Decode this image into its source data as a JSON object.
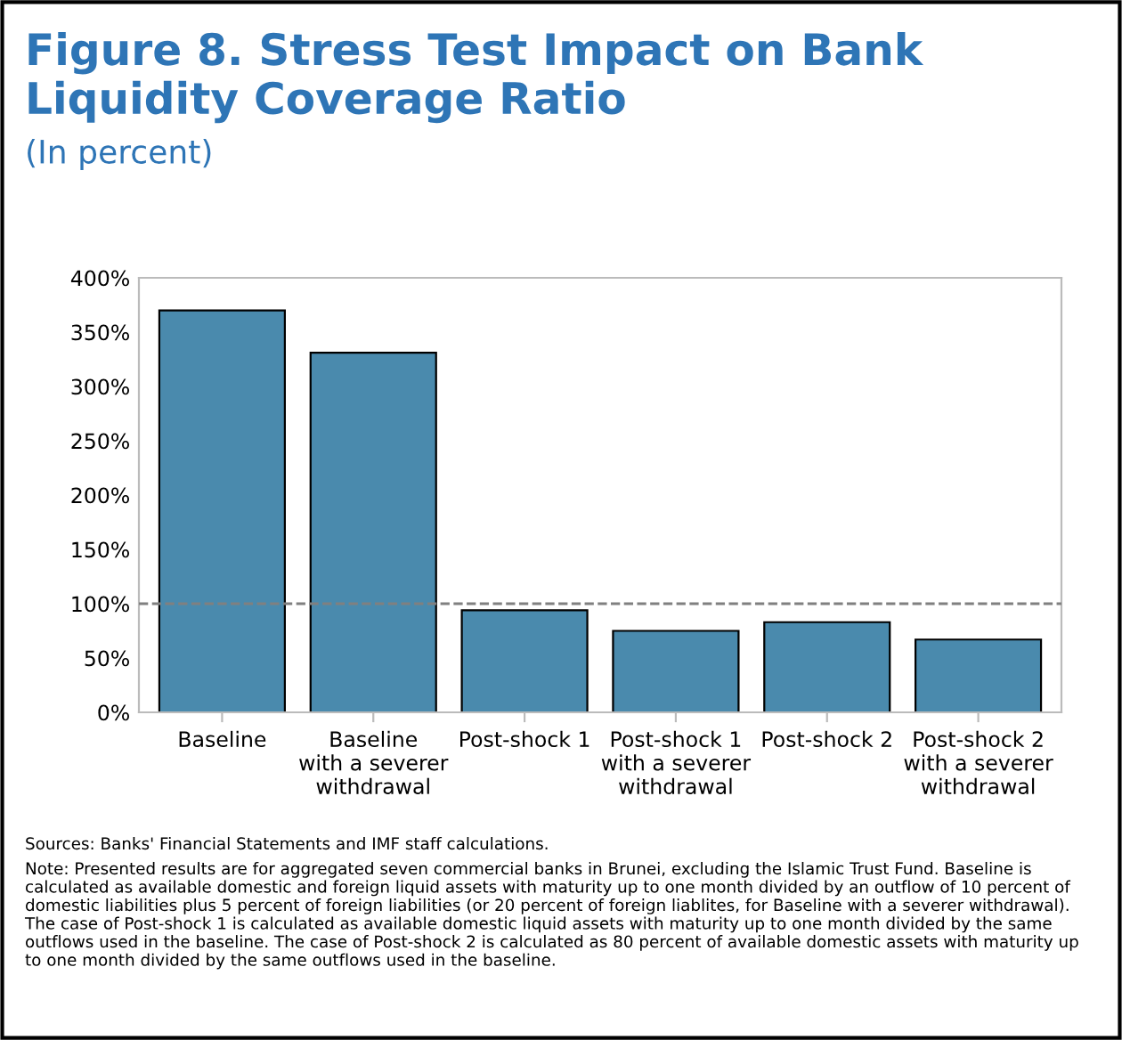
{
  "chart_data": {
    "type": "bar",
    "title": "Figure 8. Stress Test Impact on Bank Liquidity Coverage Ratio",
    "subtitle": "(In percent)",
    "categories": [
      "Baseline",
      "Baseline\nwith a severer\nwithdrawal",
      "Post-shock 1",
      "Post-shock 1\nwith a severer\nwithdrawal",
      "Post-shock 2",
      "Post-shock 2\nwith a severer\nwithdrawal"
    ],
    "values": [
      370,
      331,
      94,
      75,
      83,
      67
    ],
    "color": "#4a8aad",
    "ylim": [
      0,
      400
    ],
    "yticks": [
      {
        "value": 0,
        "label": "0%"
      },
      {
        "value": 50,
        "label": "50%"
      },
      {
        "value": 100,
        "label": "100%"
      },
      {
        "value": 150,
        "label": "150%"
      },
      {
        "value": 200,
        "label": "200%"
      },
      {
        "value": 250,
        "label": "250%"
      },
      {
        "value": 300,
        "label": "300%"
      },
      {
        "value": 350,
        "label": "350%"
      },
      {
        "value": 400,
        "label": "400%"
      }
    ],
    "ref_lines": [
      {
        "axis": "y",
        "value": 100,
        "color": "#808080",
        "line_style": "dashed"
      }
    ],
    "grid": false,
    "legend": false,
    "annotations": [
      "Sources: Banks' Financial Statements and IMF staff calculations.",
      "Note: Presented results are for aggregated seven commercial banks in Brunei, excluding the Islamic Trust Fund. Baseline is calculated as available domestic and foreign liquid assets with maturity up to one month divided by an outflow of 10 percent of domestic liabilities plus 5 percent of foreign liabilities (or 20 percent of foreign liablites, for Baseline with a severer withdrawal). The case of Post-shock 1 is calculated as available domestic liquid assets with maturity up to one month divided by the same outflows used in the baseline. The case of Post-shock 2 is calculated as 80 percent of available domestic assets with maturity up to one month divided by the same outflows used in the baseline."
    ]
  }
}
